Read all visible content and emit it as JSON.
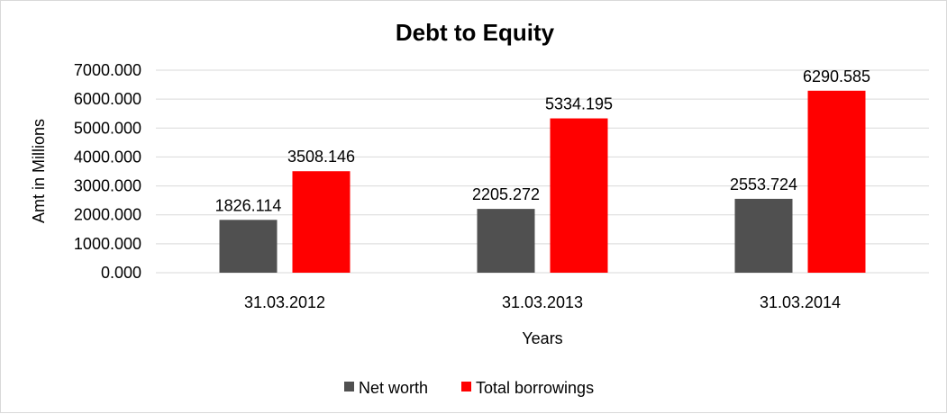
{
  "chart_data": {
    "type": "bar",
    "title": "Debt to Equity",
    "xlabel": "Years",
    "ylabel": "Amt in Millions",
    "categories": [
      "31.03.2012",
      "31.03.2013",
      "31.03.2014"
    ],
    "series": [
      {
        "name": "Net worth",
        "color": "#505050",
        "values": [
          1826.114,
          2205.272,
          2553.724
        ],
        "labels": [
          "1826.114",
          "2205.272",
          "2553.724"
        ]
      },
      {
        "name": "Total borrowings",
        "color": "#ff0000",
        "values": [
          3508.146,
          5334.195,
          6290.585
        ],
        "labels": [
          "3508.146",
          "5334.195",
          "6290.585"
        ]
      }
    ],
    "ylim": [
      0,
      7000
    ],
    "yticks": [
      0,
      1000,
      2000,
      3000,
      4000,
      5000,
      6000,
      7000
    ],
    "ytick_labels": [
      "0.000",
      "1000.000",
      "2000.000",
      "3000.000",
      "4000.000",
      "5000.000",
      "6000.000",
      "7000.000"
    ],
    "grid": true,
    "legend_position": "bottom"
  }
}
